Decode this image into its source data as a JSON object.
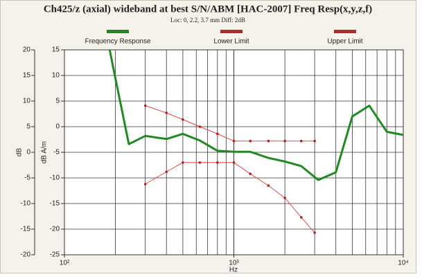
{
  "chart_data": {
    "type": "line",
    "title": "Ch425/z (axial) wideband at best S/N/ABM [HAC-2007] Freq Resp(x,y,z,f)",
    "subtitle": "Loc: 0, 2.2, 3.7 mm Diff: 2dB",
    "xlabel": "Hz",
    "ylabel": "dB A/m",
    "y2label": "dB",
    "xscale": "log",
    "xlim": [
      100,
      10000
    ],
    "xticks": [
      {
        "value": 100,
        "label": "10²"
      },
      {
        "value": 1000,
        "label": "10³"
      },
      {
        "value": 10000,
        "label": "10⁴"
      }
    ],
    "xgrid_minor": [
      200,
      300,
      400,
      500,
      600,
      700,
      800,
      900,
      2000,
      3000,
      4000,
      5000,
      6000,
      7000,
      8000,
      9000
    ],
    "ylim": [
      -25,
      15
    ],
    "yticks": [
      15,
      10,
      5,
      0,
      -5,
      -10,
      -15,
      -20,
      -25
    ],
    "y2lim": [
      -20,
      20
    ],
    "y2ticks": [
      20,
      15,
      10,
      5,
      0,
      -5,
      -10,
      -15,
      -20
    ],
    "grid": true,
    "series": [
      {
        "name": "Frequency Response",
        "color": "#1f8a1f",
        "markers": false,
        "x": [
          185,
          195,
          240,
          300,
          400,
          500,
          630,
          800,
          1000,
          1250,
          1600,
          2000,
          2500,
          3150,
          4000,
          5000,
          6300,
          8000,
          10000
        ],
        "values": [
          15,
          11.2,
          -3.4,
          -1.8,
          -2.4,
          -1.4,
          -2.7,
          -4.7,
          -4.9,
          -4.9,
          -6.1,
          -6.8,
          -7.7,
          -10.4,
          -8.9,
          2.0,
          4.1,
          -1.0,
          -1.6
        ]
      },
      {
        "name": "Lower Limit",
        "color": "#e04848",
        "legend_color": "#b02a2a",
        "markers": true,
        "x": [
          300,
          400,
          500,
          630,
          800,
          1000,
          1250,
          1600,
          2000,
          2500,
          3000
        ],
        "values": [
          -11.2,
          -8.8,
          -7,
          -7,
          -7,
          -7,
          -9.2,
          -11.5,
          -13.9,
          -17.7,
          -20.7
        ]
      },
      {
        "name": "Upper Limit",
        "color": "#e04848",
        "legend_color": "#b02a2a",
        "markers": true,
        "x": [
          300,
          400,
          500,
          630,
          800,
          1000,
          1250,
          1600,
          2000,
          2500,
          3000
        ],
        "values": [
          4.1,
          2.7,
          1.4,
          0,
          -1.4,
          -2.8,
          -2.8,
          -2.8,
          -2.8,
          -2.8,
          -2.8
        ]
      }
    ]
  }
}
